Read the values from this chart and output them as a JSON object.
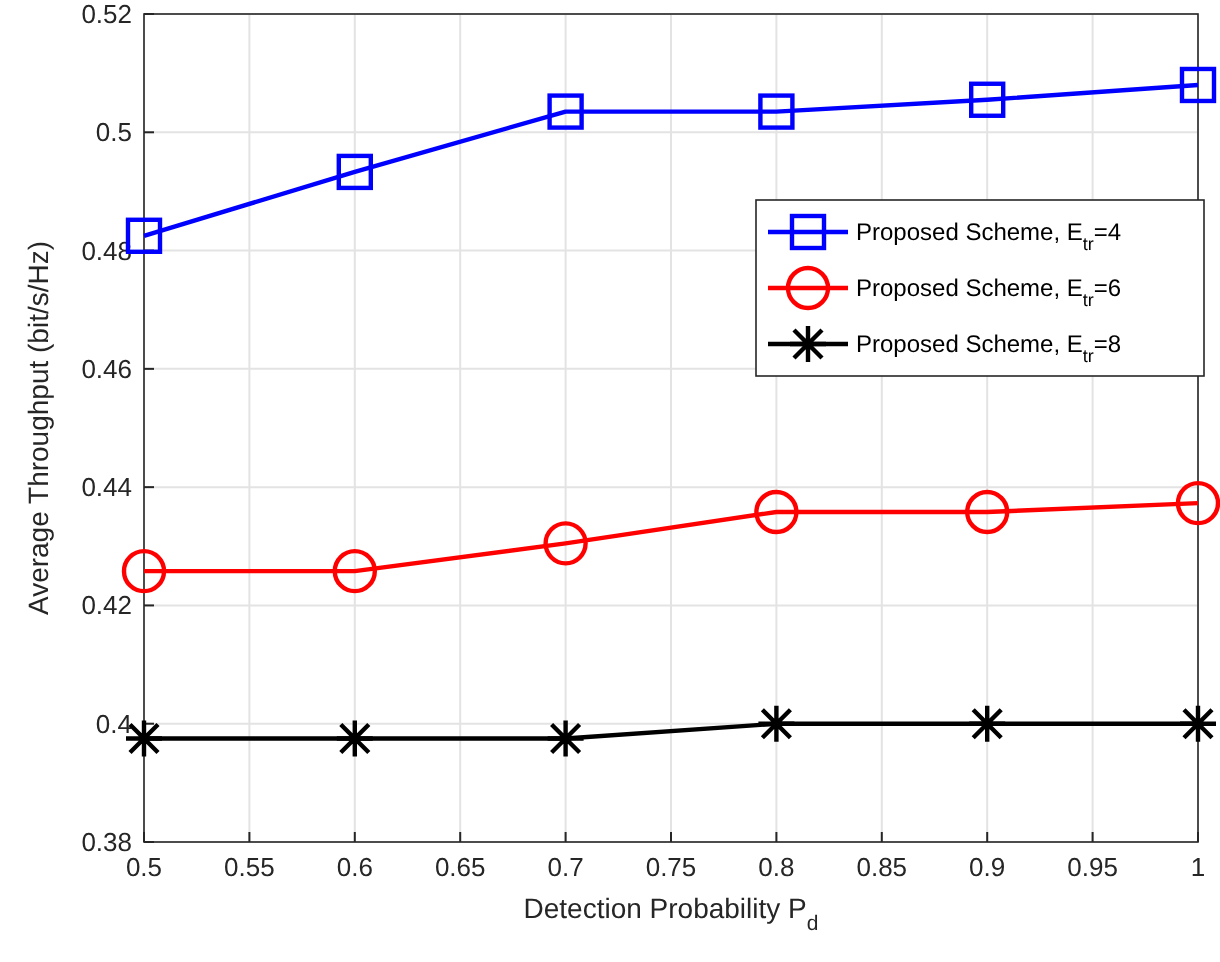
{
  "chart_data": {
    "type": "line",
    "xlabel": "Detection Probability P$_{d}$",
    "ylabel": "Average Throughput (bit/s/Hz)",
    "x": [
      0.5,
      0.6,
      0.7,
      0.8,
      0.9,
      1
    ],
    "series": [
      {
        "name": "Proposed Scheme, E$_{tr}$=4",
        "color": "#0000ff",
        "marker": "square",
        "values": [
          0.4825,
          0.4933,
          0.5035,
          0.5035,
          0.5055,
          0.508
        ]
      },
      {
        "name": "Proposed Scheme, E$_{tr}$=6",
        "color": "#ff0000",
        "marker": "circle",
        "values": [
          0.4258,
          0.4258,
          0.4305,
          0.4358,
          0.4358,
          0.4373
        ]
      },
      {
        "name": "Proposed Scheme, E$_{tr}$=8",
        "color": "#000000",
        "marker": "cross",
        "values": [
          0.3975,
          0.3975,
          0.3975,
          0.4,
          0.4,
          0.4
        ]
      }
    ],
    "xlim": [
      0.5,
      1
    ],
    "xticks": [
      0.5,
      0.55,
      0.6,
      0.65,
      0.7,
      0.75,
      0.8,
      0.85,
      0.9,
      0.95,
      1
    ],
    "ylim": [
      0.38,
      0.52
    ],
    "yticks": [
      0.38,
      0.4,
      0.42,
      0.44,
      0.46,
      0.48,
      0.5,
      0.52
    ],
    "grid": true,
    "legend": "right",
    "line_style": "solid"
  }
}
